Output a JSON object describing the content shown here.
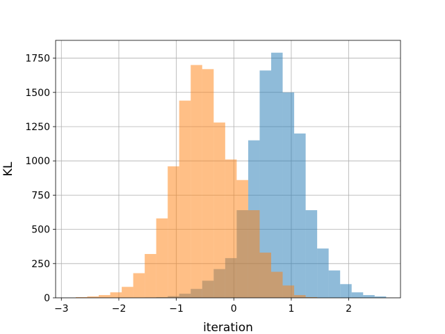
{
  "chart_data": {
    "type": "bar",
    "title": "",
    "xlabel": "iteration",
    "ylabel": "KL",
    "xlim": [
      -3.1,
      2.9
    ],
    "ylim": [
      0,
      1880
    ],
    "xticks": [
      -3,
      -2,
      -1,
      0,
      1,
      2
    ],
    "xtick_labels": [
      "−3",
      "−2",
      "−1",
      "0",
      "1",
      "2"
    ],
    "yticks": [
      0,
      250,
      500,
      750,
      1000,
      1250,
      1500,
      1750
    ],
    "ytick_labels": [
      "0",
      "250",
      "500",
      "750",
      "1000",
      "1250",
      "1500",
      "1750"
    ],
    "grid": true,
    "legend": false,
    "colors": [
      "#1f77b4",
      "#ff7f0e"
    ],
    "opacity": 0.5,
    "series": [
      {
        "bin_edges": [
          -1.55,
          -1.35,
          -1.15,
          -0.95,
          -0.75,
          -0.55,
          -0.35,
          -0.15,
          0.05,
          0.25,
          0.45,
          0.65,
          0.85,
          1.05,
          1.25,
          1.45,
          1.65,
          1.85,
          2.05,
          2.25,
          2.45,
          2.65
        ],
        "values": [
          3,
          5,
          12,
          30,
          65,
          125,
          210,
          290,
          640,
          1150,
          1660,
          1790,
          1500,
          1200,
          640,
          360,
          200,
          100,
          40,
          20,
          10
        ]
      },
      {
        "bin_edges": [
          -2.75,
          -2.55,
          -2.35,
          -2.15,
          -1.95,
          -1.75,
          -1.55,
          -1.35,
          -1.15,
          -0.95,
          -0.75,
          -0.55,
          -0.35,
          -0.15,
          0.05,
          0.25,
          0.45,
          0.65,
          0.85,
          1.05,
          1.25,
          1.45
        ],
        "values": [
          5,
          10,
          20,
          40,
          80,
          180,
          320,
          580,
          960,
          1440,
          1700,
          1670,
          1280,
          1010,
          860,
          640,
          330,
          190,
          90,
          20,
          5
        ]
      }
    ]
  }
}
